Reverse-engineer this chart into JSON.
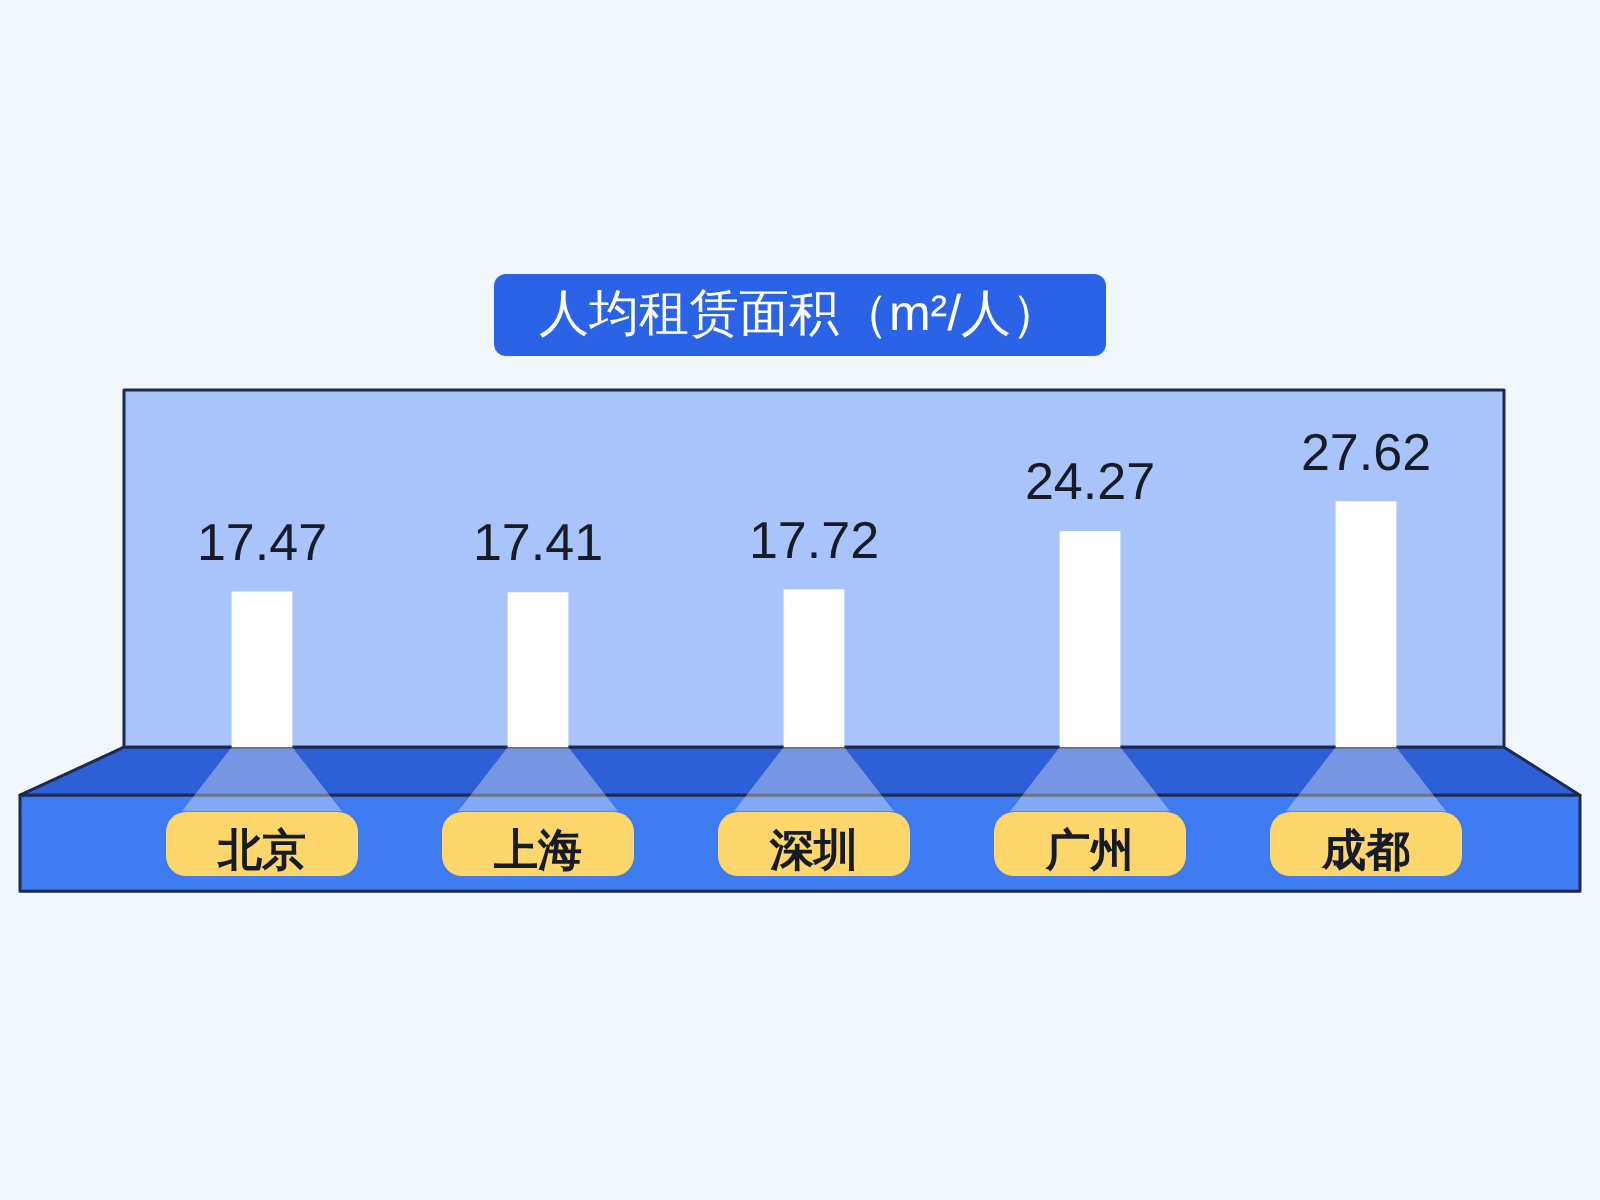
{
  "chart_data": {
    "type": "bar",
    "title": "人均租赁面积（m²/人）",
    "categories": [
      "北京",
      "上海",
      "深圳",
      "广州",
      "成都"
    ],
    "values": [
      17.47,
      17.41,
      17.72,
      24.27,
      27.62
    ],
    "color": "#ffffff",
    "data_labels": true
  }
}
